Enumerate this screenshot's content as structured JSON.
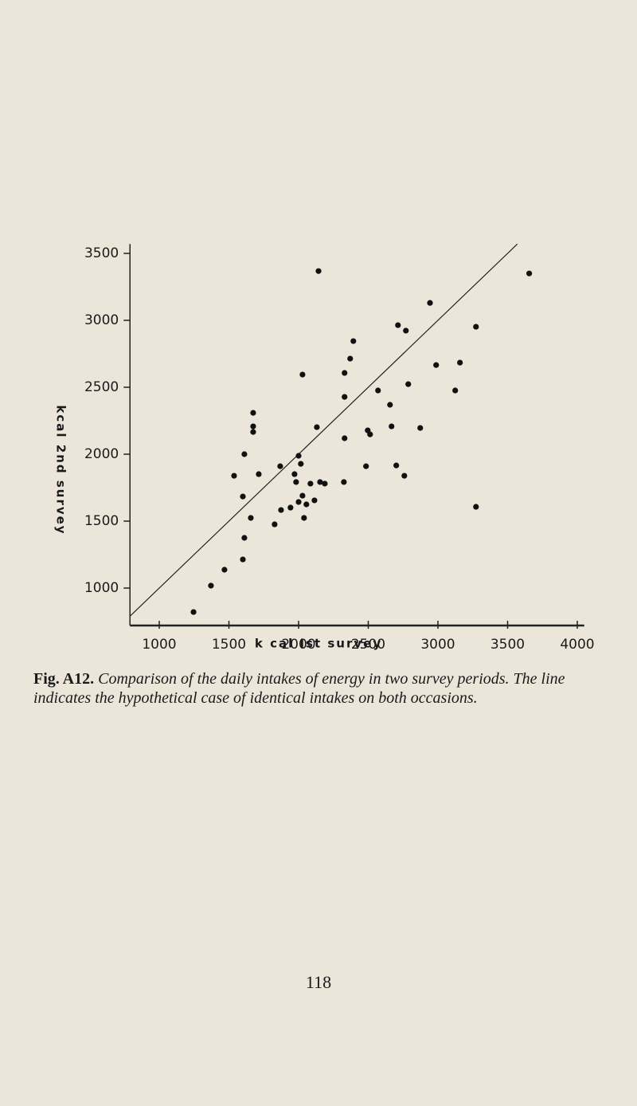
{
  "chart_data": {
    "type": "scatter",
    "x_label": "k cal   Ist   survey",
    "y_label": "kcal   2nd   survey",
    "xlim": [
      790,
      4050
    ],
    "ylim": [
      720,
      3570
    ],
    "xticks": [
      1000,
      1500,
      2000,
      2500,
      3000,
      3500,
      4000
    ],
    "yticks": [
      1000,
      1500,
      2000,
      2500,
      3000,
      3500
    ],
    "identity_line": [
      790,
      3570
    ],
    "color": "#111111",
    "series": [
      {
        "name": null,
        "color": "#111111",
        "x": [
          2143,
          3655,
          2943,
          2713,
          2770,
          3273,
          2393,
          2370,
          2987,
          3158,
          2330,
          2028,
          2787,
          2570,
          3124,
          2330,
          2656,
          1674,
          2131,
          1674,
          1674,
          2667,
          2496,
          2873,
          2330,
          2513,
          1611,
          2000,
          1868,
          2484,
          2701,
          2759,
          1537,
          1714,
          1971,
          2016,
          1982,
          2085,
          2154,
          2325,
          2188,
          1600,
          2028,
          1874,
          1942,
          2000,
          2056,
          2114,
          2039,
          1828,
          1657,
          3273,
          1611,
          1600,
          1468,
          1371,
          1246
        ],
        "values": [
          3368,
          3350,
          3130,
          2964,
          2923,
          2952,
          2845,
          2714,
          2666,
          2684,
          2607,
          2595,
          2523,
          2476,
          2476,
          2428,
          2369,
          2309,
          2202,
          2208,
          2166,
          2208,
          2178,
          2196,
          2119,
          2148,
          2000,
          1988,
          1910,
          1910,
          1916,
          1839,
          1839,
          1851,
          1851,
          1928,
          1792,
          1780,
          1792,
          1792,
          1780,
          1684,
          1690,
          1583,
          1601,
          1643,
          1625,
          1655,
          1524,
          1476,
          1524,
          1607,
          1375,
          1214,
          1137,
          1018,
          821
        ]
      }
    ]
  },
  "caption_label": "Fig. A12.",
  "caption": "Comparison of the daily intakes of energy in two survey periods. The line indicates the hypothetical case of identical intakes on both occasions.",
  "page_number": "118"
}
